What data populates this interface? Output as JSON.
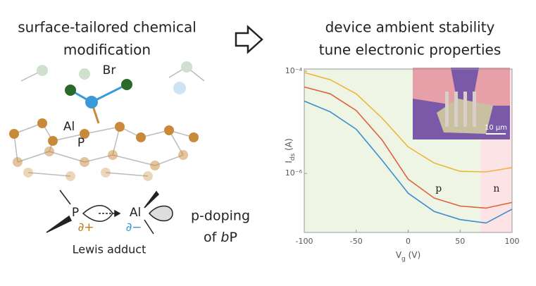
{
  "left": {
    "title_lines": [
      "surface-tailored chemical",
      "modification"
    ],
    "atom_labels": {
      "br": "Br",
      "al": "Al",
      "p": "P"
    },
    "adduct": {
      "p": "P",
      "al": "Al",
      "delta_plus": "∂+",
      "delta_minus": "∂−",
      "caption": "Lewis adduct"
    },
    "doping": {
      "line1": "p-doping",
      "line2_parts": [
        "of ",
        "b",
        "P"
      ]
    }
  },
  "right": {
    "title_lines": [
      "device ambient stability",
      "tune electronic properties"
    ],
    "inset_scale": "10 µm"
  },
  "chart_data": {
    "type": "line",
    "log_y": true,
    "x_label_parts": [
      "V",
      "g",
      " (V)"
    ],
    "y_label_parts": [
      "I",
      "ds",
      " (A)"
    ],
    "xlim": [
      -100,
      100
    ],
    "xticks": [
      -100,
      -50,
      0,
      50,
      100
    ],
    "ylim": [
      7e-08,
      0.00011
    ],
    "yticks": [
      {
        "value": 0.0001,
        "label": "10⁻⁴"
      },
      {
        "value": 1e-06,
        "label": "10⁻⁶"
      }
    ],
    "regions": [
      {
        "label": "p",
        "from": -100,
        "to": 70,
        "color": "#eef5e4"
      },
      {
        "label": "n",
        "from": 70,
        "to": 100,
        "color": "#fbe3e6"
      }
    ],
    "x": [
      -100,
      -75,
      -50,
      -25,
      0,
      25,
      50,
      75,
      100
    ],
    "series": [
      {
        "color": "#f0b43c",
        "values": [
          9.4e-05,
          6.8e-05,
          3.6e-05,
          1.2e-05,
          3.3e-06,
          1.6e-06,
          1.1e-06,
          1.07e-06,
          1.3e-06
        ]
      },
      {
        "color": "#e0623a",
        "values": [
          4.9e-05,
          3.6e-05,
          1.7e-05,
          4.5e-06,
          7.7e-07,
          3.3e-07,
          2.3e-07,
          2.1e-07,
          2.7e-07
        ]
      },
      {
        "color": "#3a8fd0",
        "values": [
          2.6e-05,
          1.6e-05,
          7.3e-06,
          1.8e-06,
          4.1e-07,
          1.8e-07,
          1.25e-07,
          1.07e-07,
          2e-07
        ]
      }
    ]
  }
}
